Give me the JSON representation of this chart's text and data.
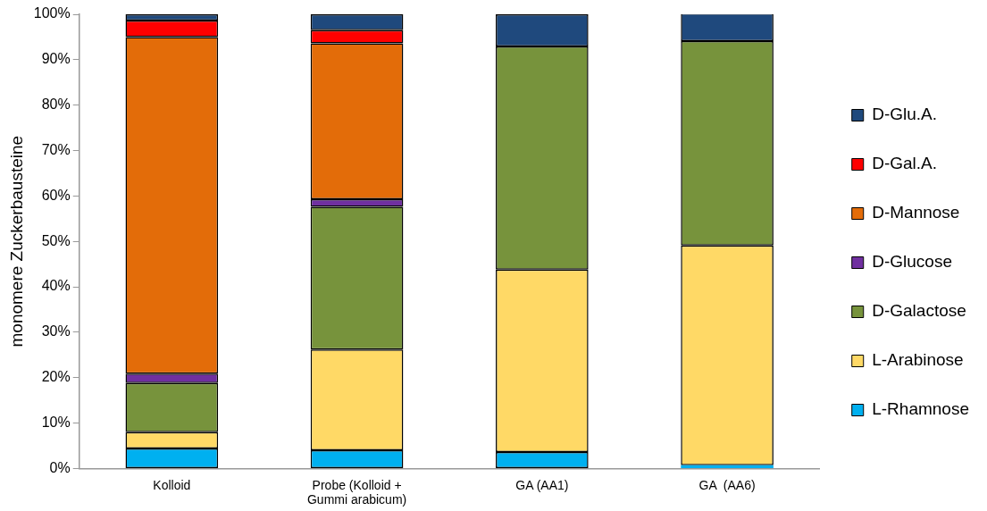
{
  "chart_data": {
    "type": "bar",
    "stacked": true,
    "ylabel": "monomere Zuckerbausteine",
    "categories": [
      "Kolloid",
      "Probe (Kolloid + Gummi arabicum)",
      "GA (AA1)",
      "GA  (AA6)"
    ],
    "series": [
      {
        "name": "L-Rhamnose",
        "color": "#00b0f0",
        "values": [
          4.4,
          4.0,
          3.6,
          0.7
        ]
      },
      {
        "name": "L-Arabinose",
        "color": "#ffd966",
        "values": [
          3.6,
          22.2,
          40.2,
          48.4
        ]
      },
      {
        "name": "D-Galactose",
        "color": "#77933c",
        "values": [
          10.8,
          31.4,
          49.1,
          45.0
        ]
      },
      {
        "name": "D-Glucose",
        "color": "#7030a0",
        "values": [
          2.1,
          1.7,
          null,
          null
        ]
      },
      {
        "name": "D-Mannose",
        "color": "#e36c09",
        "values": [
          74.1,
          34.3,
          null,
          null
        ]
      },
      {
        "name": "D-Gal.A.",
        "color": "#ff0000",
        "values": [
          3.6,
          2.9,
          null,
          null
        ]
      },
      {
        "name": "D-Glu.A.",
        "color": "#1f497d",
        "values": [
          1.4,
          3.5,
          7.1,
          6.1
        ]
      }
    ],
    "ylim": [
      0,
      100
    ],
    "yticks": [
      {
        "value": 0,
        "label": "0%"
      },
      {
        "value": 10,
        "label": "10%"
      },
      {
        "value": 20,
        "label": "20%"
      },
      {
        "value": 30,
        "label": "30%"
      },
      {
        "value": 40,
        "label": "40%"
      },
      {
        "value": 50,
        "label": "50%"
      },
      {
        "value": 60,
        "label": "60%"
      },
      {
        "value": 70,
        "label": "70%"
      },
      {
        "value": 80,
        "label": "80%"
      },
      {
        "value": 90,
        "label": "90%"
      },
      {
        "value": 100,
        "label": "100%"
      }
    ],
    "grid": false,
    "legend": "right"
  }
}
